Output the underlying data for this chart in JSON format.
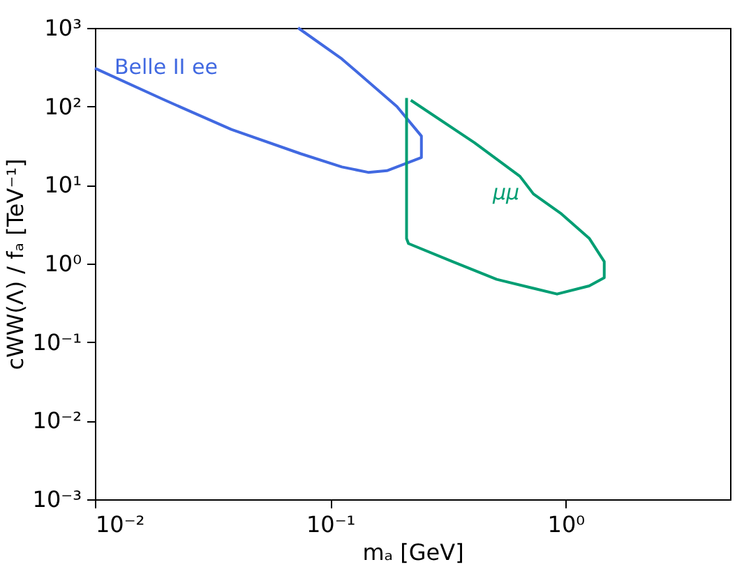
{
  "chart_data": {
    "type": "line",
    "xlabel": "mₐ [GeV]",
    "ylabel": "cWW(Λ) / fₐ [TeV⁻¹]",
    "log": "xy",
    "grid": false,
    "legend": false,
    "marker": "none",
    "line_style": "solid",
    "xlim": [
      0.01,
      5
    ],
    "ylim": [
      0.001,
      1000
    ],
    "xticks": [
      {
        "value": 0.01,
        "label": "10⁻²"
      },
      {
        "value": 0.1,
        "label": "10⁻¹"
      },
      {
        "value": 1,
        "label": "10⁰"
      }
    ],
    "yticks": [
      {
        "value": 0.001,
        "label": "10⁻³"
      },
      {
        "value": 0.01,
        "label": "10⁻²"
      },
      {
        "value": 0.1,
        "label": "10⁻¹"
      },
      {
        "value": 1,
        "label": "10⁰"
      },
      {
        "value": 10,
        "label": "10¹"
      },
      {
        "value": 100,
        "label": "10²"
      },
      {
        "value": 1000,
        "label": "10³"
      }
    ],
    "series": [
      {
        "name": "Belle II ee",
        "color": "#4169e1",
        "x": [
          0.01,
          0.0195,
          0.038,
          0.075,
          0.112,
          0.145,
          0.174,
          0.244,
          0.244,
          0.192,
          0.112,
          0.073
        ],
        "values": [
          306,
          123,
          51,
          25,
          17,
          14.5,
          15.2,
          22.4,
          42,
          100,
          403,
          1000
        ]
      },
      {
        "name": "μμ",
        "color": "#009e73",
        "x": [
          0.211,
          0.211,
          0.215,
          0.328,
          0.51,
          0.92,
          1.26,
          1.46,
          1.46,
          1.26,
          0.96,
          0.73,
          0.64,
          0.41,
          0.22
        ],
        "values": [
          128,
          2.09,
          1.8,
          1.07,
          0.63,
          0.41,
          0.52,
          0.66,
          1.06,
          2.1,
          4.3,
          7.7,
          12.9,
          34.6,
          120
        ]
      }
    ]
  }
}
